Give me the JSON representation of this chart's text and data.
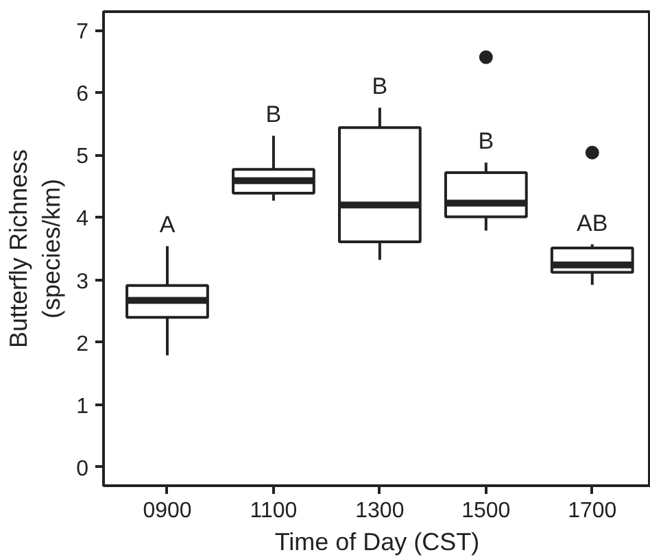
{
  "chart_data": {
    "type": "box",
    "xlabel": "Time of Day (CST)",
    "ylabel": "Butterfly Richness\n(species/km)",
    "categories": [
      "0900",
      "1100",
      "1300",
      "1500",
      "1700"
    ],
    "boxes": [
      {
        "low": 1.79,
        "q1": 2.4,
        "median": 2.67,
        "q3": 2.91,
        "high": 3.54
      },
      {
        "low": 4.27,
        "q1": 4.39,
        "median": 4.59,
        "q3": 4.77,
        "high": 5.31
      },
      {
        "low": 3.32,
        "q1": 3.61,
        "median": 4.2,
        "q3": 5.44,
        "high": 5.76
      },
      {
        "low": 3.79,
        "q1": 4.01,
        "median": 4.23,
        "q3": 4.72,
        "high": 4.88,
        "outliers": [
          6.57
        ]
      },
      {
        "low": 2.92,
        "q1": 3.12,
        "median": 3.24,
        "q3": 3.51,
        "high": 3.57,
        "outliers": [
          5.04
        ]
      }
    ],
    "color": "#222222",
    "ylim": [
      -0.3,
      7.3
    ],
    "yticks": [
      0,
      1,
      2,
      3,
      4,
      5,
      6,
      7
    ],
    "grid": false,
    "annotations": [
      "A",
      "B",
      "B",
      "B",
      "AB"
    ]
  }
}
